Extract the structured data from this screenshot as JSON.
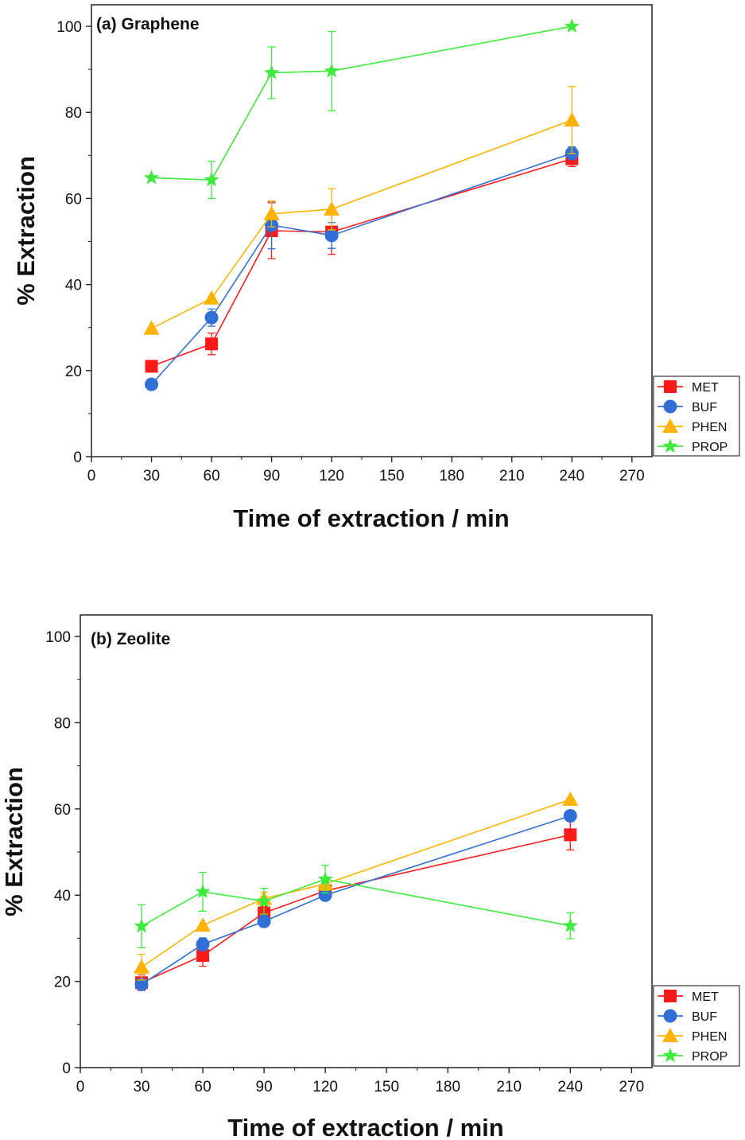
{
  "colors": {
    "MET": "#ff1a1a",
    "BUF": "#2f6fd6",
    "PHEN": "#ffb300",
    "PROP": "#3dea3d"
  },
  "markers": {
    "MET": "square",
    "BUF": "circle",
    "PHEN": "triangle",
    "PROP": "star"
  },
  "chart_data": [
    {
      "type": "line",
      "title": "(a) Graphene",
      "xlabel": "Time of extraction / min",
      "ylabel": "% Extraction",
      "xlim": [
        0,
        280
      ],
      "ylim": [
        0,
        105
      ],
      "xticks": [
        0,
        30,
        60,
        90,
        120,
        150,
        180,
        210,
        240,
        270
      ],
      "yticks": [
        0,
        20,
        40,
        60,
        80,
        100
      ],
      "grid": false,
      "legend_position": "bottom-right",
      "x": [
        30,
        60,
        90,
        120,
        240
      ],
      "series": [
        {
          "name": "MET",
          "values": [
            21,
            26.2,
            52.5,
            52.2,
            69.2
          ],
          "errors": [
            0,
            2.5,
            6.5,
            5.2,
            1.8
          ]
        },
        {
          "name": "BUF",
          "values": [
            16.8,
            32.3,
            53.8,
            51.4,
            70.5
          ],
          "errors": [
            0,
            2,
            5.5,
            3,
            1.5
          ]
        },
        {
          "name": "PHEN",
          "values": [
            29.8,
            36.8,
            56.4,
            57.5,
            78.2
          ],
          "errors": [
            0,
            0,
            3,
            4.8,
            7.8
          ]
        },
        {
          "name": "PROP",
          "values": [
            64.8,
            64.3,
            89.2,
            89.6,
            100
          ],
          "errors": [
            0,
            4.3,
            6,
            9.2,
            0
          ]
        }
      ]
    },
    {
      "type": "line",
      "title": "(b) Zeolite",
      "xlabel": "Time of extraction / min",
      "ylabel": "% Extraction",
      "xlim": [
        0,
        280
      ],
      "ylim": [
        0,
        105
      ],
      "xticks": [
        0,
        30,
        60,
        90,
        120,
        150,
        180,
        210,
        240,
        270
      ],
      "yticks": [
        0,
        20,
        40,
        60,
        80,
        100
      ],
      "grid": false,
      "legend_position": "bottom-right",
      "x": [
        30,
        60,
        90,
        120,
        240
      ],
      "series": [
        {
          "name": "MET",
          "values": [
            19.7,
            26,
            35.9,
            41,
            54
          ],
          "errors": [
            1.8,
            2.5,
            1.5,
            1.8,
            3.5
          ]
        },
        {
          "name": "BUF",
          "values": [
            19.3,
            28.6,
            33.9,
            40,
            58.4
          ],
          "errors": [
            1.2,
            1.5,
            1.2,
            1,
            1.2
          ]
        },
        {
          "name": "PHEN",
          "values": [
            23.3,
            33,
            39.2,
            42.6,
            62.2
          ],
          "errors": [
            3,
            0,
            1.5,
            1.5,
            0
          ]
        },
        {
          "name": "PROP",
          "values": [
            32.8,
            40.8,
            38.6,
            43.7,
            32.9
          ],
          "errors": [
            5,
            4.5,
            3,
            3.2,
            3
          ]
        }
      ]
    }
  ]
}
